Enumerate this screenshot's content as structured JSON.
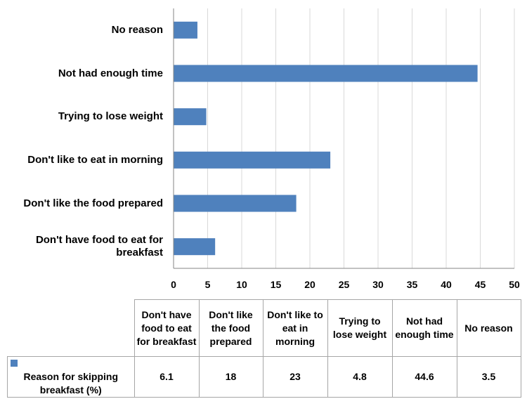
{
  "chart_data": {
    "type": "bar",
    "orientation": "horizontal",
    "categories": [
      "Don't have food to eat for breakfast",
      "Don't like the food prepared",
      "Don't like to eat in morning",
      "Trying to lose weight",
      "Not had enough time",
      "No reason"
    ],
    "axis_labels": [
      "Don't have food to eat for breakfast",
      "Don't like the food prepared",
      "Don't like to eat in morning",
      "Trying to lose weight",
      "Not had enough time",
      "No reason"
    ],
    "series": [
      {
        "name": "Reason for skipping breakfast (%)",
        "values": [
          6.1,
          18,
          23,
          4.8,
          44.6,
          3.5
        ],
        "color": "#4f81bd"
      }
    ],
    "xlim": [
      0,
      50
    ],
    "xticks": [
      "0",
      "5",
      "10",
      "15",
      "20",
      "25",
      "30",
      "35",
      "40",
      "45",
      "50"
    ],
    "grid": true,
    "data_table": {
      "headers": [
        "Don't have food to eat for breakfast",
        "Don't like the food prepared",
        "Don't like to eat in morning",
        "Trying to lose weight",
        "Not had enough time",
        "No reason"
      ],
      "row_label": "Reason for skipping breakfast (%)",
      "values": [
        "6.1",
        "18",
        "23",
        "4.8",
        "44.6",
        "3.5"
      ]
    }
  }
}
